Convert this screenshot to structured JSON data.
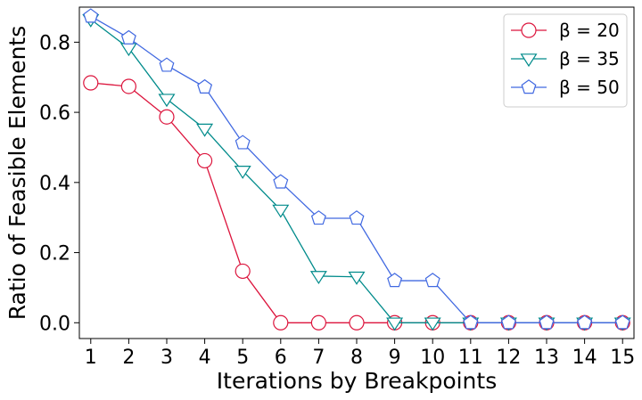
{
  "chart_data": {
    "type": "line",
    "title": "",
    "xlabel": "Iterations by Breakpoints",
    "ylabel": "Ratio of Feasible Elements",
    "x": [
      1,
      2,
      3,
      4,
      5,
      6,
      7,
      8,
      9,
      10,
      11,
      12,
      13,
      14,
      15
    ],
    "xlim": [
      0.7,
      15.3
    ],
    "ylim": [
      -0.045,
      0.9
    ],
    "yticks": [
      0.0,
      0.2,
      0.4,
      0.6,
      0.8
    ],
    "ytick_labels": [
      "0.0",
      "0.2",
      "0.4",
      "0.6",
      "0.8"
    ],
    "grid": false,
    "legend_position": "top-right",
    "series": [
      {
        "name": "β = 20",
        "color": "#dc143c",
        "marker": "circle",
        "values": [
          0.684,
          0.674,
          0.587,
          0.462,
          0.147,
          0.0,
          0.0,
          0.0,
          0.0,
          0.0,
          0.0,
          0.0,
          0.0,
          0.0,
          0.0
        ]
      },
      {
        "name": "β = 35",
        "color": "#008b8b",
        "marker": "triangle-down",
        "values": [
          0.865,
          0.783,
          0.638,
          0.553,
          0.433,
          0.322,
          0.133,
          0.131,
          0.0,
          0.0,
          0.0,
          0.0,
          0.0,
          0.0,
          0.0
        ]
      },
      {
        "name": "β = 50",
        "color": "#4169e1",
        "marker": "pentagon",
        "values": [
          0.874,
          0.812,
          0.734,
          0.672,
          0.513,
          0.401,
          0.298,
          0.298,
          0.12,
          0.12,
          0.0,
          0.0,
          0.0,
          0.0,
          0.0
        ]
      }
    ]
  }
}
